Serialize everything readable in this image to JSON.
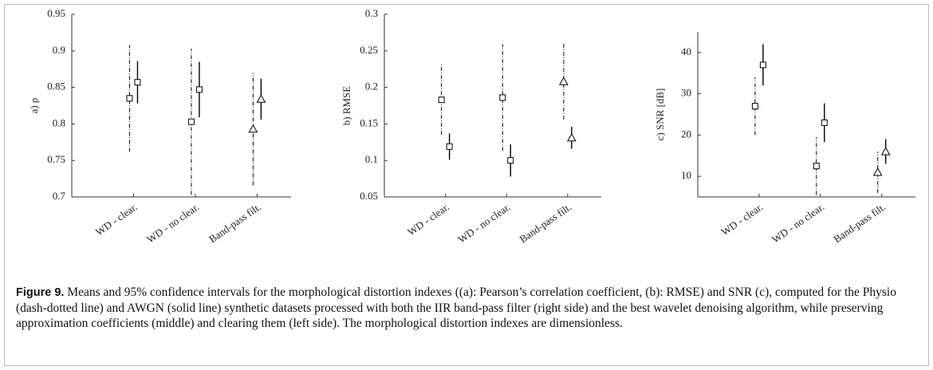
{
  "chart_data": [
    {
      "type": "errorbar",
      "ylabel": "a)  ρ",
      "categories": [
        "WD - clear.",
        "WD - no clear.",
        "Band-pass filt."
      ],
      "markers": [
        "square",
        "square",
        "triangle"
      ],
      "ylim": [
        0.7,
        0.95
      ],
      "yticks": [
        0.7,
        0.75,
        0.8,
        0.85,
        0.9,
        0.95
      ],
      "series": [
        {
          "color": "#000000",
          "line_style": "dashdot",
          "values": [
            0.835,
            0.803,
            0.793
          ],
          "errors": [
            0.073,
            0.1,
            0.077
          ]
        },
        {
          "color": "#000000",
          "line_style": "solid",
          "values": [
            0.857,
            0.847,
            0.834
          ],
          "errors": [
            0.029,
            0.038,
            0.028
          ]
        }
      ]
    },
    {
      "type": "errorbar",
      "ylabel": "b)  RMSE",
      "categories": [
        "WD - clear.",
        "WD - no clear.",
        "Band-pass filt."
      ],
      "markers": [
        "square",
        "square",
        "triangle"
      ],
      "ylim": [
        0.05,
        0.3
      ],
      "yticks": [
        0.05,
        0.1,
        0.15,
        0.2,
        0.25,
        0.3
      ],
      "series": [
        {
          "color": "#000000",
          "line_style": "dashdot",
          "values": [
            0.183,
            0.186,
            0.208
          ],
          "errors": [
            0.048,
            0.073,
            0.052
          ]
        },
        {
          "color": "#000000",
          "line_style": "solid",
          "values": [
            0.119,
            0.1,
            0.131
          ],
          "errors": [
            0.018,
            0.022,
            0.015
          ]
        }
      ]
    },
    {
      "type": "errorbar",
      "ylabel": "c)  SNR [dB]",
      "categories": [
        "WD - clear.",
        "WD - no clear.",
        "Band-pass filt."
      ],
      "markers": [
        "square",
        "square",
        "triangle"
      ],
      "ylim": [
        5,
        45
      ],
      "yticks": [
        10,
        20,
        30,
        40
      ],
      "series": [
        {
          "color": "#000000",
          "line_style": "dashdot",
          "values": [
            27,
            12.5,
            11
          ],
          "errors": [
            7,
            7,
            5
          ]
        },
        {
          "color": "#000000",
          "line_style": "solid",
          "values": [
            37,
            23,
            16
          ],
          "errors": [
            5,
            4.7,
            3
          ]
        }
      ]
    }
  ],
  "caption": {
    "label": "Figure 9.",
    "text": "Means and 95% confidence intervals for the morphological distortion indexes ((a): Pearson’s correlation coefficient, (b): RMSE) and SNR (c), computed for the Physio (dash-dotted line) and AWGN (solid line) synthetic datasets processed with both the IIR band-pass filter (right side) and the best wavelet denoising algorithm, while preserving approximation coefficients (middle) and clearing them (left side). The morphological distortion indexes are dimensionless."
  }
}
